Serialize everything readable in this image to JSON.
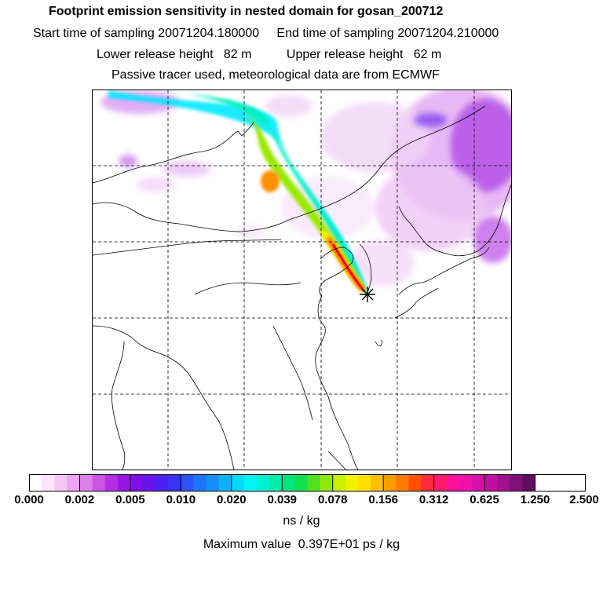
{
  "header": {
    "title": "Footprint emission sensitivity in nested domain for gosan_200712",
    "sampling_line": "Start time of sampling 20071204.180000     End time of sampling 20071204.210000",
    "release_line": "Lower release height   82 m          Upper release height   62 m",
    "tracer_line": "Passive tracer used, meteorological data are from ECMWF"
  },
  "colorbar": {
    "tick_labels": [
      "0.000",
      "0.002",
      "0.005",
      "0.010",
      "0.020",
      "0.039",
      "0.078",
      "0.156",
      "0.312",
      "0.625",
      "1.250",
      "2.500"
    ],
    "colors": [
      "#ffffff",
      "#fbe6fb",
      "#f4c8f4",
      "#eba6ef",
      "#dd7fe8",
      "#cc55e6",
      "#b52ee4",
      "#9a14e6",
      "#7d10ea",
      "#6415ee",
      "#4b20f2",
      "#3a33f4",
      "#2b52f6",
      "#1f74f8",
      "#178ffa",
      "#10b0fb",
      "#06d8fc",
      "#00f5f2",
      "#00f0d2",
      "#00eca8",
      "#00e67e",
      "#10e050",
      "#4fe020",
      "#90e800",
      "#c8f000",
      "#f0f000",
      "#fde000",
      "#ffc000",
      "#ff9c00",
      "#ff7a00",
      "#ff5000",
      "#ff2a3a",
      "#ff1a6e",
      "#ff109a",
      "#f010aa",
      "#d810aa",
      "#c010a0",
      "#a01090",
      "#80107a",
      "#600c60"
    ],
    "units": "ns / kg"
  },
  "maximum_value": "Maximum value  0.397E+01 ps / kg",
  "map": {
    "receptor_marker": "star",
    "plume_colors": [
      "#ff0000",
      "#ffa000",
      "#f8f000",
      "#00f0c0",
      "#00e8ff"
    ],
    "background_tint": "#cc66ee"
  }
}
